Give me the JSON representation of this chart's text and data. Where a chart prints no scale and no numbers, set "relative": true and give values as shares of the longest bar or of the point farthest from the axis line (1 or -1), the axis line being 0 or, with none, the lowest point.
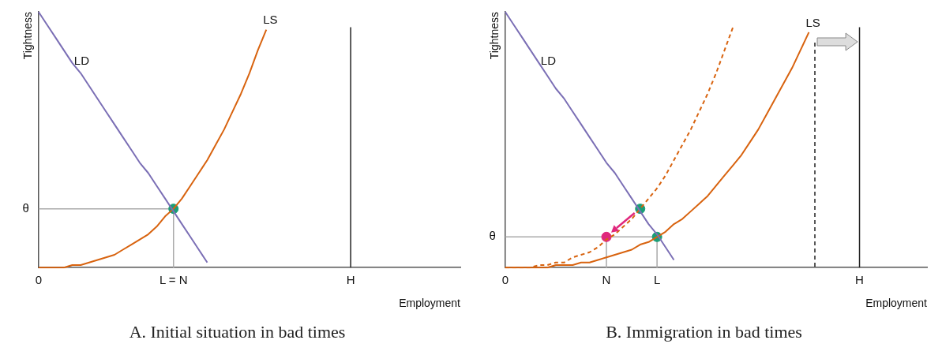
{
  "chart_data": [
    {
      "type": "line",
      "relative": true,
      "title": "A. Initial situation in bad times",
      "xlabel": "Employment",
      "ylabel": "Tightness",
      "legend": false,
      "categories": [
        "0",
        null,
        null,
        null,
        null,
        null,
        null,
        null,
        null,
        null,
        null,
        null,
        null,
        null,
        null,
        null,
        "L = N",
        null,
        null,
        null,
        null,
        null,
        null,
        null,
        null,
        null,
        null,
        null,
        null,
        null,
        null,
        null,
        null,
        null,
        null,
        null,
        null,
        "H",
        null,
        null,
        null,
        null,
        null,
        null,
        null,
        null,
        null,
        null,
        null,
        null,
        null
      ],
      "series": [
        {
          "name": "LD",
          "color": "#7b6fb5",
          "values": [
            1,
            0.95,
            0.9,
            0.85,
            0.8,
            0.76,
            0.71,
            0.66,
            0.61,
            0.56,
            0.51,
            0.46,
            0.41,
            0.37,
            0.32,
            0.27,
            0.22,
            0.17,
            0.12,
            0.07,
            0.02,
            null,
            null,
            null,
            null,
            null,
            null,
            null,
            null,
            null,
            null,
            null,
            null,
            null,
            null,
            null,
            null,
            null,
            null,
            null,
            null,
            null,
            null,
            null,
            null,
            null,
            null,
            null,
            null,
            null,
            null
          ]
        },
        {
          "name": "LS",
          "color": "#d8630f",
          "values": [
            0,
            0,
            0,
            0,
            0.01,
            0.01,
            0.02,
            0.03,
            0.04,
            0.05,
            0.07,
            0.09,
            0.11,
            0.13,
            0.16,
            0.2,
            0.23,
            0.27,
            0.32,
            0.37,
            0.42,
            0.48,
            0.54,
            0.61,
            0.68,
            0.76,
            0.85,
            0.93,
            null,
            null,
            null,
            null,
            null,
            null,
            null,
            null,
            null,
            null,
            null,
            null,
            null,
            null,
            null,
            null,
            null,
            null,
            null,
            null,
            null,
            null,
            null
          ]
        },
        {
          "type": "scatter",
          "marker": "circle",
          "color": "#1a9e77",
          "values": [
            null,
            null,
            null,
            null,
            null,
            null,
            null,
            null,
            null,
            null,
            null,
            null,
            null,
            null,
            null,
            null,
            0.23,
            null,
            null,
            null,
            null,
            null,
            null,
            null,
            null,
            null,
            null,
            null,
            null,
            null,
            null,
            null,
            null,
            null,
            null,
            null,
            null,
            null,
            null,
            null,
            null,
            null,
            null,
            null,
            null,
            null,
            null,
            null,
            null,
            null,
            null
          ]
        }
      ],
      "ref_lines": [
        {
          "axis": "y",
          "value": 0.23,
          "label": "θ",
          "color": "#aaaaaa"
        },
        {
          "axis": "x",
          "value": "H",
          "color": "#222222"
        }
      ]
    },
    {
      "type": "line",
      "relative": true,
      "title": "B. Immigration in bad times",
      "xlabel": "Employment",
      "ylabel": "Tightness",
      "legend": false,
      "categories": [
        "0",
        null,
        null,
        null,
        null,
        null,
        null,
        null,
        null,
        null,
        null,
        null,
        "N",
        null,
        null,
        null,
        null,
        null,
        "L",
        null,
        null,
        null,
        null,
        null,
        null,
        null,
        null,
        null,
        null,
        null,
        null,
        null,
        null,
        null,
        null,
        null,
        null,
        null,
        null,
        null,
        null,
        null,
        "H",
        null,
        null,
        null,
        null,
        null,
        null,
        null,
        null
      ],
      "series": [
        {
          "name": "LD",
          "color": "#7b6fb5",
          "values": [
            1,
            0.95,
            0.9,
            0.85,
            0.8,
            0.75,
            0.7,
            0.66,
            0.61,
            0.56,
            0.51,
            0.46,
            0.41,
            0.37,
            0.32,
            0.27,
            0.22,
            0.17,
            0.13,
            0.08,
            0.03,
            null,
            null,
            null,
            null,
            null,
            null,
            null,
            null,
            null,
            null,
            null,
            null,
            null,
            null,
            null,
            null,
            null,
            null,
            null,
            null,
            null,
            null,
            null,
            null,
            null,
            null,
            null,
            null,
            null,
            null
          ]
        },
        {
          "color": "#d8630f",
          "line_style": "dashed",
          "values": [
            0,
            0,
            0,
            0,
            0.01,
            0.01,
            0.02,
            0.02,
            0.04,
            0.05,
            0.06,
            0.08,
            0.11,
            0.13,
            0.16,
            0.19,
            0.23,
            0.27,
            0.31,
            0.36,
            0.42,
            0.48,
            0.54,
            0.61,
            0.68,
            0.76,
            0.85,
            0.94,
            null,
            null,
            null,
            null,
            null,
            null,
            null,
            null,
            null,
            null,
            null,
            null,
            null,
            null,
            null,
            null,
            null,
            null,
            null,
            null,
            null,
            null,
            null
          ]
        },
        {
          "name": "LS",
          "color": "#d8630f",
          "values": [
            0,
            0,
            0,
            0,
            0,
            0,
            0.01,
            0.01,
            0.01,
            0.02,
            0.02,
            0.03,
            0.04,
            0.05,
            0.06,
            0.07,
            0.09,
            0.1,
            0.12,
            0.14,
            0.17,
            0.19,
            0.22,
            0.25,
            0.28,
            0.32,
            0.36,
            0.4,
            0.44,
            0.49,
            0.54,
            0.6,
            0.66,
            0.72,
            0.78,
            0.85,
            0.92,
            null,
            null,
            null,
            null,
            null,
            null,
            null,
            null,
            null,
            null,
            null,
            null,
            null,
            null
          ]
        },
        {
          "type": "scatter",
          "marker": "circle",
          "color": "#1a9e77",
          "values": [
            null,
            null,
            null,
            null,
            null,
            null,
            null,
            null,
            null,
            null,
            null,
            null,
            null,
            null,
            null,
            null,
            0.23,
            null,
            0.12,
            null,
            null,
            null,
            null,
            null,
            null,
            null,
            null,
            null,
            null,
            null,
            null,
            null,
            null,
            null,
            null,
            null,
            null,
            null,
            null,
            null,
            null,
            null,
            null,
            null,
            null,
            null,
            null,
            null,
            null,
            null,
            null
          ]
        },
        {
          "type": "scatter",
          "marker": "circle",
          "color": "#e0287d",
          "values": [
            null,
            null,
            null,
            null,
            null,
            null,
            null,
            null,
            null,
            null,
            null,
            null,
            0.12,
            null,
            null,
            null,
            null,
            null,
            null,
            null,
            null,
            null,
            null,
            null,
            null,
            null,
            null,
            null,
            null,
            null,
            null,
            null,
            null,
            null,
            null,
            null,
            null,
            null,
            null,
            null,
            null,
            null,
            null,
            null,
            null,
            null,
            null,
            null,
            null,
            null,
            null
          ]
        }
      ],
      "ref_lines": [
        {
          "axis": "y",
          "value": 0.12,
          "label": "θ",
          "color": "#aaaaaa"
        },
        {
          "axis": "x",
          "value": "H",
          "color": "#222222"
        }
      ]
    }
  ]
}
